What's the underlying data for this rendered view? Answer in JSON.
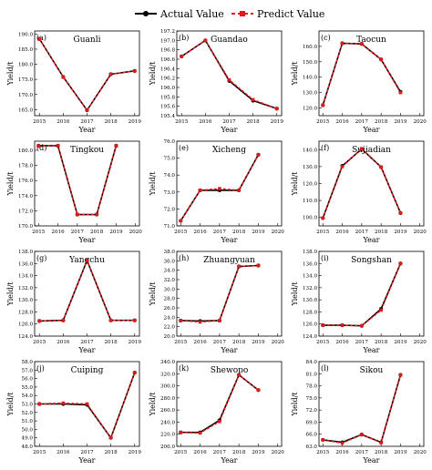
{
  "legend": {
    "actual_label": "Actual Value",
    "predict_label": "Predict Value",
    "actual_color": "#000000",
    "predict_color": "#e31a1c"
  },
  "chart_data": [
    {
      "type": "line",
      "panel": "(a)",
      "title": "Guanli",
      "xlabel": "Year",
      "ylabel": "Yield/t",
      "x": [
        2015,
        2016,
        2017,
        2018,
        2019
      ],
      "xticks": [
        2015,
        2016,
        2017,
        2018,
        2019
      ],
      "ylim": [
        163.0,
        191.0
      ],
      "yticks": [
        165.0,
        170.0,
        175.0,
        180.0,
        185.0,
        190.0
      ],
      "ydec": 1,
      "series": [
        {
          "name": "Actual Value",
          "values": [
            188.4,
            175.8,
            164.8,
            176.7,
            177.8
          ]
        },
        {
          "name": "Predict Value",
          "values": [
            188.4,
            175.8,
            164.8,
            176.7,
            177.8
          ]
        }
      ]
    },
    {
      "type": "line",
      "panel": "(b)",
      "title": "Guandao",
      "xlabel": "Year",
      "ylabel": "Yield/t",
      "x": [
        2015,
        2016,
        2017,
        2018,
        2019
      ],
      "xticks": [
        2015,
        2016,
        2017,
        2018,
        2019
      ],
      "ylim": [
        195.4,
        197.2
      ],
      "yticks": [
        195.4,
        195.6,
        195.8,
        196.0,
        196.2,
        196.4,
        196.6,
        196.8,
        197.0,
        197.2
      ],
      "ydec": 1,
      "series": [
        {
          "name": "Actual Value",
          "values": [
            196.66,
            197.0,
            196.14,
            195.72,
            195.55
          ]
        },
        {
          "name": "Predict Value",
          "values": [
            196.66,
            197.0,
            196.16,
            195.74,
            195.55
          ]
        }
      ]
    },
    {
      "type": "line",
      "panel": "(c)",
      "title": "Taocun",
      "xlabel": "Year",
      "ylabel": "Yield/t",
      "x": [
        2015,
        2016,
        2017,
        2018,
        2019
      ],
      "xticks": [
        2015,
        2016,
        2017,
        2018,
        2019,
        2020
      ],
      "ylim": [
        115,
        170
      ],
      "yticks": [
        120,
        130,
        140,
        150,
        160
      ],
      "ydec": 1,
      "series": [
        {
          "name": "Actual Value",
          "values": [
            121.8,
            162.0,
            161.6,
            151.5,
            130.5
          ]
        },
        {
          "name": "Predict Value",
          "values": [
            121.8,
            162.0,
            161.6,
            151.5,
            130.0
          ]
        }
      ]
    },
    {
      "type": "line",
      "panel": "(d)",
      "title": "Tingkou",
      "xlabel": "Year",
      "ylabel": "Yield/t",
      "x": [
        2015,
        2016,
        2017,
        2018,
        2019
      ],
      "xticks": [
        2015,
        2016,
        2017,
        2018,
        2019,
        2020
      ],
      "ylim": [
        170.0,
        181.2
      ],
      "yticks": [
        170.0,
        172.0,
        174.0,
        176.0,
        178.0,
        180.0
      ],
      "ydec": 1,
      "series": [
        {
          "name": "Actual Value",
          "values": [
            180.6,
            180.6,
            171.5,
            171.5,
            180.6
          ]
        },
        {
          "name": "Predict Value",
          "values": [
            180.6,
            180.6,
            171.5,
            171.5,
            180.6
          ]
        }
      ]
    },
    {
      "type": "line",
      "panel": "(e)",
      "title": "Xicheng",
      "xlabel": "Year",
      "ylabel": "Yield/t",
      "x": [
        2015,
        2016,
        2017,
        2018,
        2019
      ],
      "xticks": [
        2015,
        2016,
        2017,
        2018,
        2019,
        2020
      ],
      "ylim": [
        71.0,
        76.0
      ],
      "yticks": [
        71.0,
        72.0,
        73.0,
        74.0,
        75.0,
        76.0
      ],
      "ydec": 1,
      "series": [
        {
          "name": "Actual Value",
          "values": [
            71.3,
            73.1,
            73.1,
            73.1,
            75.2
          ]
        },
        {
          "name": "Predict Value",
          "values": [
            71.3,
            73.1,
            73.2,
            73.1,
            75.2
          ]
        }
      ]
    },
    {
      "type": "line",
      "panel": "(f)",
      "title": "Sujiadian",
      "xlabel": "Year",
      "ylabel": "Yield/t",
      "x": [
        2015,
        2016,
        2017,
        2018,
        2019
      ],
      "xticks": [
        2015,
        2016,
        2017,
        2018,
        2019,
        2020
      ],
      "ylim": [
        95,
        145
      ],
      "yticks": [
        100,
        110,
        120,
        130,
        140
      ],
      "ydec": 1,
      "series": [
        {
          "name": "Actual Value",
          "values": [
            99.6,
            130.4,
            140.4,
            129.7,
            102.6
          ]
        },
        {
          "name": "Predict Value",
          "values": [
            99.6,
            130.0,
            140.6,
            129.7,
            102.6
          ]
        }
      ]
    },
    {
      "type": "line",
      "panel": "(g)",
      "title": "Yangchu",
      "xlabel": "Year",
      "ylabel": "Yield/t",
      "x": [
        2015,
        2016,
        2017,
        2018,
        2019
      ],
      "xticks": [
        2015,
        2016,
        2017,
        2018,
        2019
      ],
      "ylim": [
        124.0,
        138.0
      ],
      "yticks": [
        124.0,
        126.0,
        128.0,
        130.0,
        132.0,
        134.0,
        136.0,
        138.0
      ],
      "ydec": 1,
      "series": [
        {
          "name": "Actual Value",
          "values": [
            126.5,
            126.6,
            136.5,
            126.6,
            126.6
          ]
        },
        {
          "name": "Predict Value",
          "values": [
            126.5,
            126.6,
            136.5,
            126.6,
            126.6
          ]
        }
      ]
    },
    {
      "type": "line",
      "panel": "(h)",
      "title": "Zhuangyuan",
      "xlabel": "Year",
      "ylabel": "Yield/t",
      "x": [
        2015,
        2016,
        2017,
        2018,
        2019
      ],
      "xticks": [
        2015,
        2016,
        2017,
        2018,
        2019,
        2020
      ],
      "ylim": [
        20.0,
        38.0
      ],
      "yticks": [
        20.0,
        22.0,
        24.0,
        26.0,
        28.0,
        30.0,
        32.0,
        34.0,
        36.0,
        38.0
      ],
      "ydec": 1,
      "series": [
        {
          "name": "Actual Value",
          "values": [
            23.3,
            23.2,
            23.3,
            34.8,
            35.0
          ]
        },
        {
          "name": "Predict Value",
          "values": [
            23.3,
            23.0,
            23.3,
            34.8,
            35.0
          ]
        }
      ]
    },
    {
      "type": "line",
      "panel": "(i)",
      "title": "Songshan",
      "xlabel": "Year",
      "ylabel": "Yield/t",
      "x": [
        2015,
        2016,
        2017,
        2018,
        2019
      ],
      "xticks": [
        2015,
        2016,
        2017,
        2018,
        2019,
        2020
      ],
      "ylim": [
        124.0,
        138.0
      ],
      "yticks": [
        124.0,
        126.0,
        128.0,
        130.0,
        132.0,
        134.0,
        136.0,
        138.0
      ],
      "ydec": 1,
      "series": [
        {
          "name": "Actual Value",
          "values": [
            125.8,
            125.8,
            125.7,
            128.5,
            136.0
          ]
        },
        {
          "name": "Predict Value",
          "values": [
            125.8,
            125.8,
            125.7,
            128.3,
            136.0
          ]
        }
      ]
    },
    {
      "type": "line",
      "panel": "(j)",
      "title": "Cuiping",
      "xlabel": "Year",
      "ylabel": "Yield/t",
      "x": [
        2015,
        2016,
        2017,
        2018,
        2019
      ],
      "xticks": [
        2015,
        2016,
        2017,
        2018,
        2019
      ],
      "ylim": [
        48.0,
        58.0
      ],
      "yticks": [
        48.0,
        49.0,
        50.0,
        51.0,
        52.0,
        53.0,
        54.0,
        55.0,
        56.0,
        57.0,
        58.0
      ],
      "ydec": 1,
      "series": [
        {
          "name": "Actual Value",
          "values": [
            53.0,
            53.0,
            52.9,
            49.0,
            56.7
          ]
        },
        {
          "name": "Predict Value",
          "values": [
            53.0,
            53.1,
            53.0,
            49.0,
            56.7
          ]
        }
      ]
    },
    {
      "type": "line",
      "panel": "(k)",
      "title": "Shewopo",
      "xlabel": "Year",
      "ylabel": "Yield/t",
      "x": [
        2015,
        2016,
        2017,
        2018,
        2019
      ],
      "xticks": [
        2015,
        2016,
        2017,
        2018,
        2019,
        2020
      ],
      "ylim": [
        200.0,
        340.0
      ],
      "yticks": [
        200.0,
        220.0,
        240.0,
        260.0,
        280.0,
        300.0,
        320.0,
        340.0
      ],
      "ydec": 1,
      "series": [
        {
          "name": "Actual Value",
          "values": [
            223.0,
            223.0,
            243.0,
            318.0,
            293.0
          ]
        },
        {
          "name": "Predict Value",
          "values": [
            223.0,
            222.0,
            241.0,
            318.0,
            293.0
          ]
        }
      ]
    },
    {
      "type": "line",
      "panel": "(l)",
      "title": "Sikou",
      "xlabel": "Year",
      "ylabel": "Yield/t",
      "x": [
        2015,
        2016,
        2017,
        2018,
        2019
      ],
      "xticks": [
        2015,
        2016,
        2017,
        2018,
        2019,
        2020
      ],
      "ylim": [
        63.0,
        84.0
      ],
      "yticks": [
        63.0,
        66.0,
        69.0,
        72.0,
        75.0,
        78.0,
        81.0,
        84.0
      ],
      "ydec": 1,
      "series": [
        {
          "name": "Actual Value",
          "values": [
            64.6,
            64.0,
            65.9,
            64.0,
            80.7
          ]
        },
        {
          "name": "Predict Value",
          "values": [
            64.6,
            63.8,
            65.9,
            63.9,
            80.7
          ]
        }
      ]
    }
  ]
}
